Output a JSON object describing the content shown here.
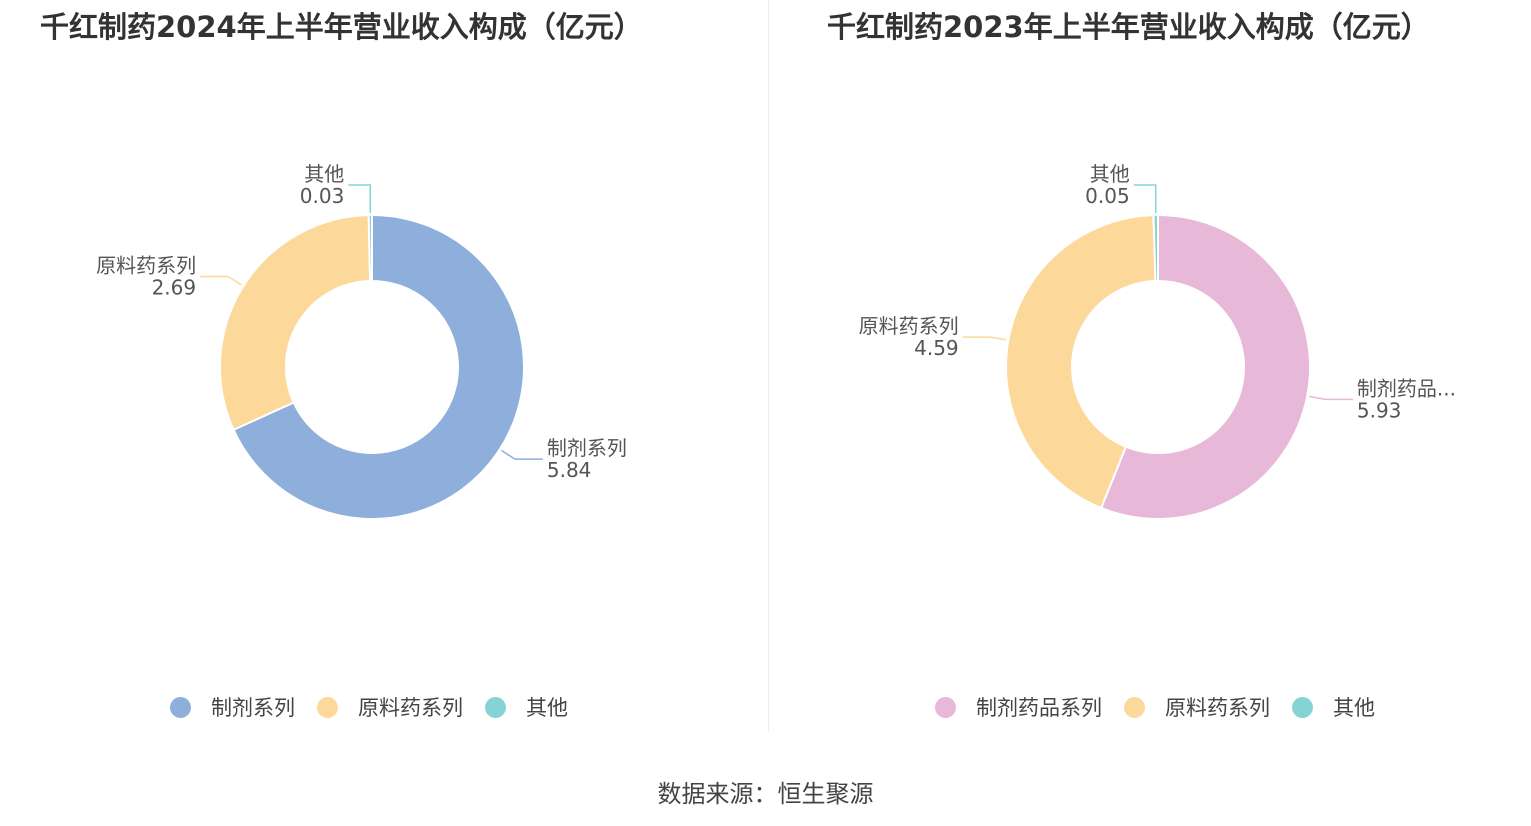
{
  "colors": {
    "slice_blue": "#8eaedb",
    "slice_pink": "#e8b8d8",
    "slice_yellow": "#fdd89b",
    "slice_teal": "#86d3d5"
  },
  "chart_data": [
    {
      "type": "pie",
      "variant": "donut",
      "title": "千红制药2024年上半年营业收入构成（亿元）",
      "slices": [
        {
          "label": "制剂系列",
          "value": 5.84,
          "value_text": "5.84",
          "color": "#8eaedb"
        },
        {
          "label": "原料药系列",
          "value": 2.69,
          "value_text": "2.69",
          "color": "#fdd89b"
        },
        {
          "label": "其他",
          "value": 0.03,
          "value_text": "0.03",
          "color": "#86d3d5"
        }
      ],
      "legend": [
        "制剂系列",
        "原料药系列",
        "其他"
      ],
      "legend_position": "bottom"
    },
    {
      "type": "pie",
      "variant": "donut",
      "title": "千红制药2023年上半年营业收入构成（亿元）",
      "slices": [
        {
          "label": "制剂药品系列",
          "display_label": "制剂药品...",
          "value": 5.93,
          "value_text": "5.93",
          "color": "#e8b8d8"
        },
        {
          "label": "原料药系列",
          "value": 4.59,
          "value_text": "4.59",
          "color": "#fdd89b"
        },
        {
          "label": "其他",
          "value": 0.05,
          "value_text": "0.05",
          "color": "#86d3d5"
        }
      ],
      "legend": [
        "制剂药品系列",
        "原料药系列",
        "其他"
      ],
      "legend_position": "bottom"
    }
  ],
  "source": "数据来源：恒生聚源"
}
